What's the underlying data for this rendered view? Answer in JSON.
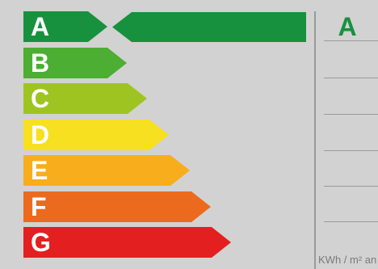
{
  "energy_label": {
    "classes": [
      {
        "letter": "A",
        "color": "#17913d"
      },
      {
        "letter": "B",
        "color": "#4cae32"
      },
      {
        "letter": "C",
        "color": "#9ec422"
      },
      {
        "letter": "D",
        "color": "#f6e01f"
      },
      {
        "letter": "E",
        "color": "#f8ad1c"
      },
      {
        "letter": "F",
        "color": "#ec6a1d"
      },
      {
        "letter": "G",
        "color": "#e31f20"
      }
    ],
    "selected": "A",
    "selected_color": "#17913d",
    "unit": "KWh / m² an"
  }
}
